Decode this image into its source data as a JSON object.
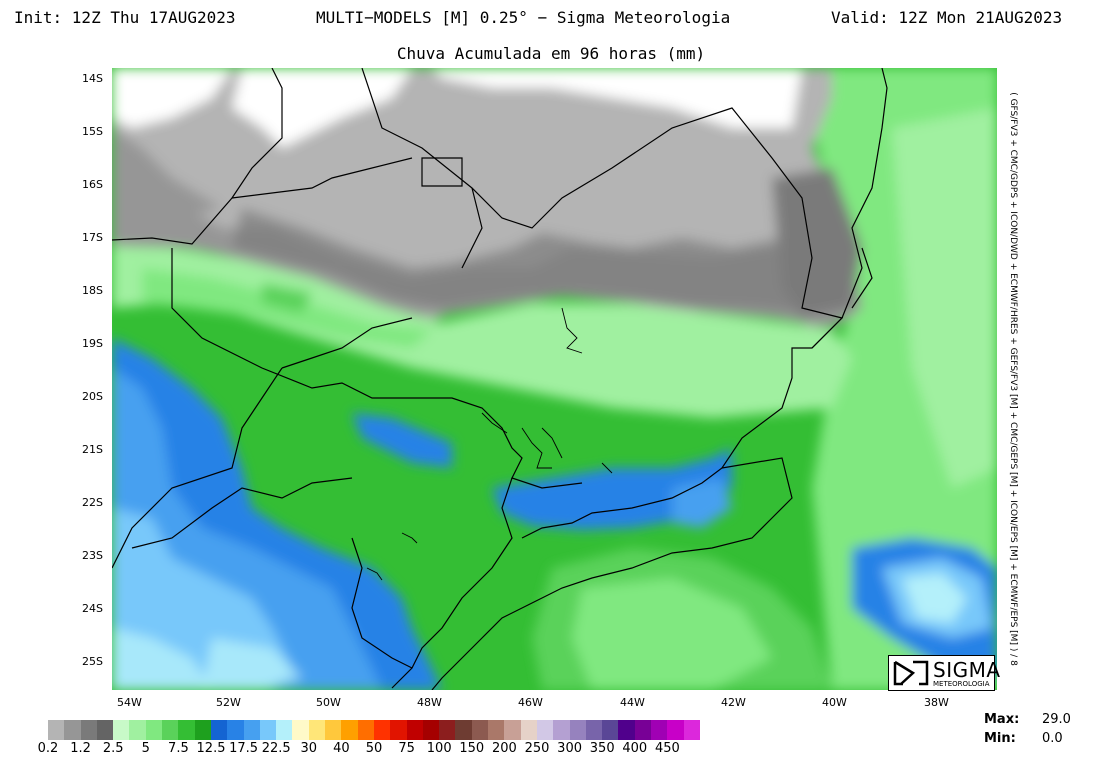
{
  "header": {
    "init": "Init: 12Z Thu 17AUG2023",
    "title": "MULTI−MODELS [M] 0.25° − Sigma Meteorologia",
    "valid": "Valid: 12Z Mon 21AUG2023"
  },
  "subtitle": "Chuva Acumulada em 96 horas (mm)",
  "side_label": "( GFS/FV3 + CMC/GDPS + ICON/DWD + ECMWF/HRES + GEFS/FV3 [M] + CMC/GEPS [M] + ICON/EPS [M] + ECMWF/EPS [M] ) / 8",
  "lat_labels": [
    "14S",
    "15S",
    "16S",
    "17S",
    "18S",
    "19S",
    "20S",
    "21S",
    "22S",
    "23S",
    "24S",
    "25S"
  ],
  "lon_labels": [
    "54W",
    "52W",
    "50W",
    "48W",
    "46W",
    "44W",
    "42W",
    "40W",
    "38W"
  ],
  "logo": {
    "text": "SIGMA",
    "subtext": "METEOROLOGIA"
  },
  "colorbar": {
    "colors": [
      "#b4b4b4",
      "#969696",
      "#7a7a7a",
      "#646464",
      "#c8fac8",
      "#a0f0a0",
      "#80e880",
      "#5ad25a",
      "#34be34",
      "#1ea01e",
      "#1464d2",
      "#2882e6",
      "#46a0f0",
      "#78c8fa",
      "#b4f0fa",
      "#fffac8",
      "#ffe678",
      "#ffc83c",
      "#ffa000",
      "#ff6e00",
      "#ff3200",
      "#e11400",
      "#c00000",
      "#a50000",
      "#8c1e1e",
      "#6e3c32",
      "#8c5a50",
      "#aa7869",
      "#c8a096",
      "#e6d2c8",
      "#d2c8e6",
      "#b4a0d2",
      "#9682be",
      "#7864aa",
      "#5a4696",
      "#50008c",
      "#780096",
      "#a000b4",
      "#c800c8",
      "#dc28dc"
    ],
    "labels": [
      "0.2",
      "1.2",
      "2.5",
      "5",
      "7.5",
      "12.5",
      "17.5",
      "22.5",
      "30",
      "40",
      "50",
      "75",
      "100",
      "150",
      "200",
      "250",
      "300",
      "350",
      "400",
      "450"
    ]
  },
  "stats": {
    "max_label": "Max:",
    "max_value": "29.0",
    "min_label": "Min:",
    "min_value": "0.0"
  }
}
